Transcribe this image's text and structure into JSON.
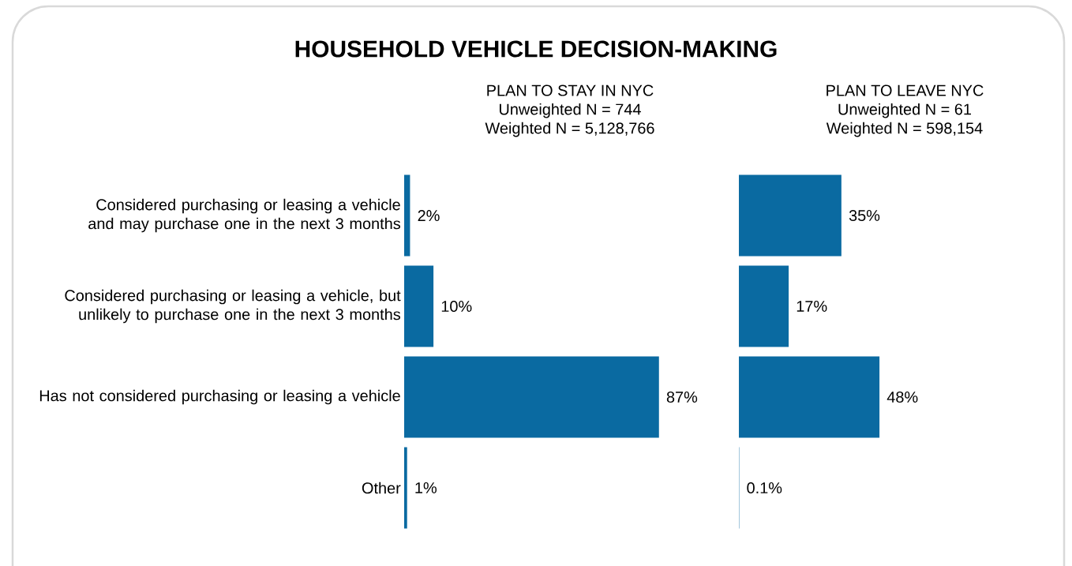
{
  "chart_data": [
    {
      "type": "bar",
      "orientation": "horizontal",
      "title": "HOUSEHOLD VEHICLE DECISION-MAKING",
      "subtitle": "PLAN TO STAY IN NYC",
      "annotations": [
        "Unweighted N = 744",
        "Weighted N = 5,128,766"
      ],
      "categories": [
        "Considered purchasing or leasing a vehicle and may purchase one in the next 3 months",
        "Considered purchasing or leasing a vehicle, but unlikely to purchase one in the next 3 months",
        "Has not considered purchasing or leasing a vehicle",
        "Other"
      ],
      "values": [
        2,
        10,
        87,
        1
      ],
      "value_labels": [
        "2%",
        "10%",
        "87%",
        "1%"
      ],
      "color": "#0a6aa1",
      "tick_labels": "y"
    },
    {
      "type": "bar",
      "orientation": "horizontal",
      "subtitle": "PLAN TO LEAVE NYC",
      "annotations": [
        "Unweighted N = 61",
        "Weighted N = 598,154"
      ],
      "categories": [
        null,
        null,
        null,
        null
      ],
      "values": [
        35,
        17,
        48,
        0.1
      ],
      "value_labels": [
        "35%",
        "17%",
        "48%",
        "0.1%"
      ],
      "color": "#0a6aa1",
      "tick_labels": false
    }
  ]
}
